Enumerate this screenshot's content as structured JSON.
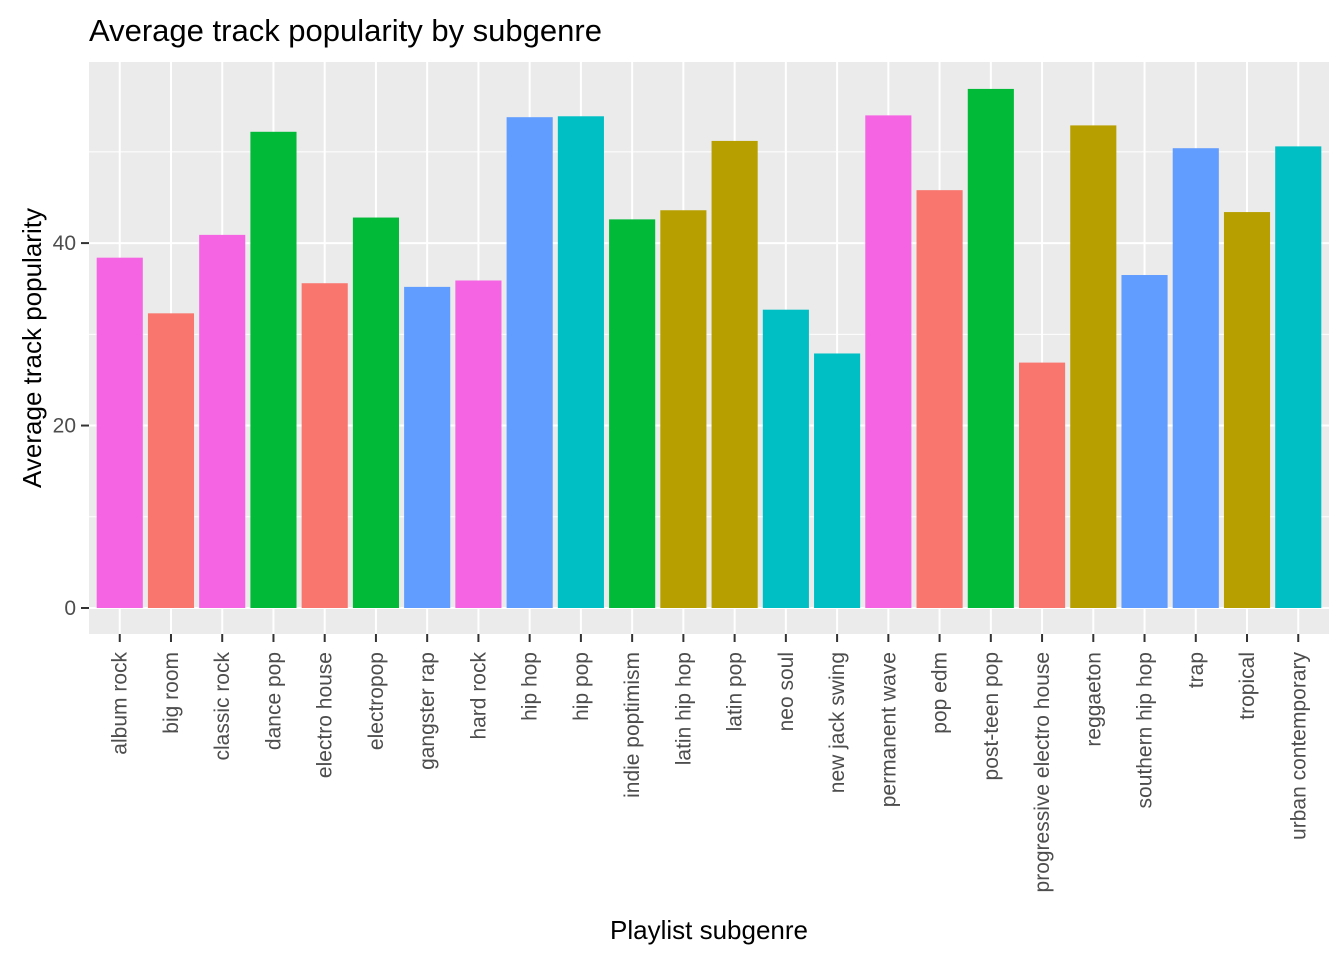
{
  "chart_data": {
    "type": "bar",
    "title": "Average track popularity by subgenre",
    "xlabel": "Playlist subgenre",
    "ylabel": "Average track popularity",
    "ylim": [
      -2.85,
      59.85
    ],
    "yticks": [
      0,
      20,
      40
    ],
    "grid": true,
    "legend": "none",
    "categories": [
      "album rock",
      "big room",
      "classic rock",
      "dance pop",
      "electro house",
      "electropop",
      "gangster rap",
      "hard rock",
      "hip hop",
      "hip pop",
      "indie poptimism",
      "latin hip hop",
      "latin pop",
      "neo soul",
      "new jack swing",
      "permanent wave",
      "pop edm",
      "post-teen pop",
      "progressive electro house",
      "reggaeton",
      "southern hip hop",
      "trap",
      "tropical",
      "urban contemporary"
    ],
    "values": [
      38.4,
      32.3,
      40.9,
      52.2,
      35.6,
      42.8,
      35.2,
      35.9,
      53.8,
      53.9,
      42.6,
      43.6,
      51.2,
      32.7,
      27.9,
      54.0,
      45.8,
      56.9,
      26.9,
      52.9,
      36.5,
      50.4,
      43.4,
      50.6
    ],
    "colors": [
      "#F564E3",
      "#F8766D",
      "#F564E3",
      "#00BA38",
      "#F8766D",
      "#00BA38",
      "#619CFF",
      "#F564E3",
      "#619CFF",
      "#00BFC4",
      "#00BA38",
      "#B79F00",
      "#B79F00",
      "#00BFC4",
      "#00BFC4",
      "#F564E3",
      "#F8766D",
      "#00BA38",
      "#F8766D",
      "#B79F00",
      "#619CFF",
      "#619CFF",
      "#B79F00",
      "#00BFC4"
    ],
    "panel_background": "#EBEBEB",
    "grid_color": "#FFFFFF"
  }
}
